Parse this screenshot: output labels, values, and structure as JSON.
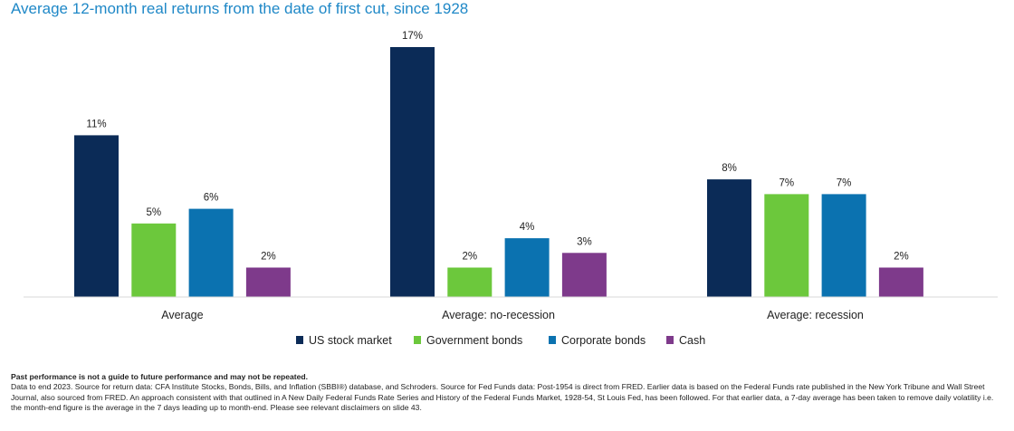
{
  "chart_data": {
    "type": "bar",
    "title": "Average 12-month real returns from the date of first cut, since 1928",
    "categories": [
      "Average",
      "Average: no-recession",
      "Average: recession"
    ],
    "series": [
      {
        "name": "US stock market",
        "values": [
          11,
          17,
          8
        ],
        "labels": [
          "11%",
          "17%",
          "8%"
        ],
        "color": "#0b2b57"
      },
      {
        "name": "Government bonds",
        "values": [
          5,
          2,
          7
        ],
        "labels": [
          "5%",
          "2%",
          "7%"
        ],
        "color": "#6cc83c"
      },
      {
        "name": "Corporate bonds",
        "values": [
          6,
          4,
          7
        ],
        "labels": [
          "6%",
          "4%",
          "7%"
        ],
        "color": "#0b72b0"
      },
      {
        "name": "Cash",
        "values": [
          2,
          3,
          2
        ],
        "labels": [
          "2%",
          "3%",
          "2%"
        ],
        "color": "#7e3a8b"
      }
    ],
    "ylim": [
      0,
      17
    ],
    "xlabel": "",
    "ylabel": "",
    "legend_position": "bottom",
    "grid": false
  },
  "footer": {
    "disclaimer": "Past performance is not a guide to future performance and may not be repeated.",
    "notes": "Data to end 2023. Source for return data: CFA Institute Stocks, Bonds, Bills, and Inflation (SBBI®) database, and Schroders. Source for Fed Funds data: Post-1954 is direct from FRED. Earlier data is based on the Federal Funds rate published in the New York Tribune and Wall Street Journal, also sourced from FRED. An approach consistent with that outlined in A New Daily Federal Funds Rate Series and History of the Federal Funds Market, 1928-54, St Louis Fed, has been followed. For that earlier data, a 7-day average has been taken to remove daily volatility i.e. the month-end figure is the average in the 7 days leading up to month-end. Please see relevant disclaimers on slide 43."
  }
}
